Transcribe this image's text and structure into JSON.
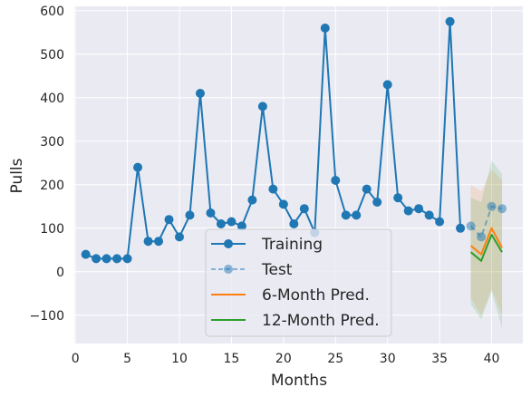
{
  "chart_data": {
    "type": "line",
    "xlabel": "Months",
    "ylabel": "Pulls",
    "xlim": [
      -0.1,
      43
    ],
    "ylim": [
      -165,
      610
    ],
    "x_ticks": [
      0,
      5,
      10,
      15,
      20,
      25,
      30,
      35,
      40
    ],
    "y_ticks": [
      -100,
      0,
      100,
      200,
      300,
      400,
      500,
      600
    ],
    "x_tick_labels": [
      "0",
      "5",
      "10",
      "15",
      "20",
      "25",
      "30",
      "35",
      "40"
    ],
    "y_tick_labels": [
      "−100",
      "0",
      "100",
      "200",
      "300",
      "400",
      "500",
      "600"
    ],
    "grid": true,
    "legend_position": "bottom-center",
    "series": [
      {
        "name": "Training",
        "color": "#1f77b4",
        "style": "solid",
        "marker": "circle",
        "x": [
          1,
          2,
          3,
          4,
          5,
          6,
          7,
          8,
          9,
          10,
          11,
          12,
          13,
          14,
          15,
          16,
          17,
          18,
          19,
          20,
          21,
          22,
          23,
          24,
          25,
          26,
          27,
          28,
          29,
          30,
          31,
          32,
          33,
          34,
          35,
          36,
          37
        ],
        "y": [
          40,
          30,
          30,
          30,
          30,
          240,
          70,
          70,
          120,
          80,
          130,
          410,
          135,
          110,
          115,
          105,
          165,
          380,
          190,
          155,
          110,
          145,
          90,
          560,
          210,
          130,
          130,
          190,
          160,
          430,
          170,
          140,
          145,
          130,
          115,
          575,
          100
        ]
      },
      {
        "name": "Test",
        "color": "#1f77b4",
        "style": "dashed",
        "marker": "circle",
        "alpha": 0.5,
        "x": [
          38,
          39,
          40,
          41
        ],
        "y": [
          105,
          80,
          150,
          145
        ]
      },
      {
        "name": "6-Month Pred.",
        "color": "#ff7f0e",
        "style": "solid",
        "x": [
          38,
          39,
          40,
          41
        ],
        "y": [
          60,
          40,
          100,
          55
        ],
        "band_upper": [
          200,
          185,
          235,
          210
        ],
        "band_lower": [
          -60,
          -100,
          -40,
          -100
        ]
      },
      {
        "name": "12-Month Pred.",
        "color": "#2ca02c",
        "style": "solid",
        "x": [
          38,
          39,
          40,
          41
        ],
        "y": [
          45,
          25,
          85,
          45
        ],
        "band_upper": [
          170,
          160,
          255,
          225
        ],
        "band_lower": [
          -75,
          -110,
          -45,
          -130
        ]
      }
    ]
  },
  "colors": {
    "plot_background": "#eaeaf2",
    "grid": "#ffffff"
  }
}
